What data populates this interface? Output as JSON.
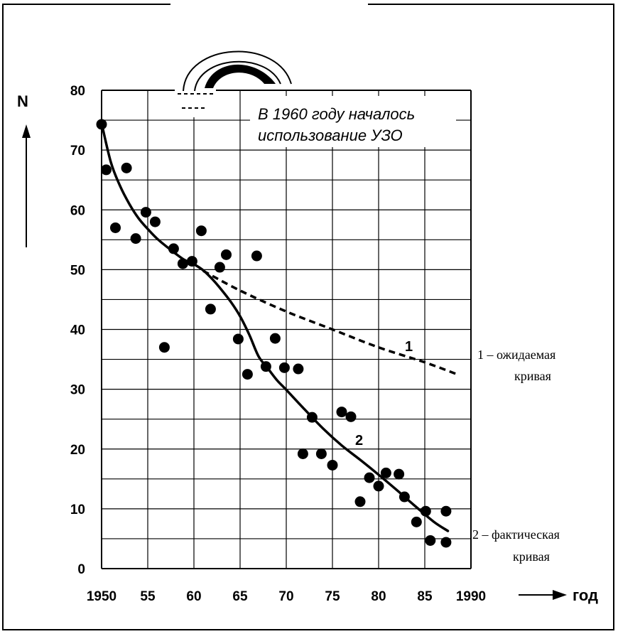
{
  "chart_data": {
    "type": "scatter",
    "xlabel": "год",
    "ylabel": "N",
    "xlim": [
      1950,
      1990
    ],
    "ylim": [
      0,
      80
    ],
    "grid": true,
    "x_tick_labels": [
      "1950",
      "55",
      "60",
      "65",
      "70",
      "75",
      "80",
      "85",
      "1990"
    ],
    "y_tick_labels": [
      "0",
      "10",
      "20",
      "30",
      "40",
      "50",
      "60",
      "70",
      "80"
    ],
    "annotation": [
      "В 1960 году началось",
      "использование УЗО"
    ],
    "legend_entries": [
      "1 – ожидаемая",
      "кривая",
      "2 – фактическая",
      "кривая"
    ],
    "curve_labels": [
      "1",
      "2"
    ],
    "points": [
      {
        "x": 1950.0,
        "y": 74.3
      },
      {
        "x": 1950.5,
        "y": 66.7
      },
      {
        "x": 1951.5,
        "y": 57.0
      },
      {
        "x": 1952.7,
        "y": 67.0
      },
      {
        "x": 1953.7,
        "y": 55.2
      },
      {
        "x": 1954.8,
        "y": 59.6
      },
      {
        "x": 1955.8,
        "y": 58.0
      },
      {
        "x": 1956.8,
        "y": 37.0
      },
      {
        "x": 1957.8,
        "y": 53.5
      },
      {
        "x": 1958.8,
        "y": 51.0
      },
      {
        "x": 1959.8,
        "y": 51.4
      },
      {
        "x": 1960.8,
        "y": 56.5
      },
      {
        "x": 1961.8,
        "y": 43.4
      },
      {
        "x": 1962.8,
        "y": 50.4
      },
      {
        "x": 1963.5,
        "y": 52.5
      },
      {
        "x": 1964.8,
        "y": 38.4
      },
      {
        "x": 1965.8,
        "y": 32.5
      },
      {
        "x": 1966.8,
        "y": 52.3
      },
      {
        "x": 1967.8,
        "y": 33.8
      },
      {
        "x": 1968.8,
        "y": 38.5
      },
      {
        "x": 1969.8,
        "y": 33.6
      },
      {
        "x": 1971.3,
        "y": 33.4
      },
      {
        "x": 1971.8,
        "y": 19.2
      },
      {
        "x": 1972.8,
        "y": 25.3
      },
      {
        "x": 1973.8,
        "y": 19.2
      },
      {
        "x": 1975.0,
        "y": 17.3
      },
      {
        "x": 1976.0,
        "y": 26.2
      },
      {
        "x": 1977.0,
        "y": 25.4
      },
      {
        "x": 1978.0,
        "y": 11.2
      },
      {
        "x": 1979.0,
        "y": 15.2
      },
      {
        "x": 1980.0,
        "y": 13.8
      },
      {
        "x": 1980.8,
        "y": 16.0
      },
      {
        "x": 1982.2,
        "y": 15.8
      },
      {
        "x": 1982.8,
        "y": 12.0
      },
      {
        "x": 1984.1,
        "y": 7.8
      },
      {
        "x": 1985.1,
        "y": 9.6
      },
      {
        "x": 1985.6,
        "y": 4.7
      },
      {
        "x": 1987.3,
        "y": 4.4
      },
      {
        "x": 1987.3,
        "y": 9.6
      }
    ],
    "series": [
      {
        "name": "1",
        "style": "dashed",
        "x": [
          1961,
          1965,
          1970,
          1975,
          1980,
          1985,
          1988.5
        ],
        "y": [
          49.8,
          46.5,
          43.0,
          40.0,
          37.0,
          34.5,
          32.5
        ]
      },
      {
        "name": "2",
        "style": "solid",
        "x": [
          1950,
          1951,
          1952,
          1953,
          1954,
          1955,
          1956,
          1957,
          1958,
          1959,
          1960,
          1961,
          1962,
          1963,
          1964,
          1965,
          1966,
          1967,
          1968,
          1969,
          1970,
          1972,
          1974,
          1976,
          1978,
          1980,
          1982,
          1984,
          1986,
          1987.5
        ],
        "y": [
          74.5,
          68.0,
          64.0,
          61.0,
          58.6,
          56.8,
          55.2,
          53.9,
          52.7,
          51.6,
          50.9,
          49.9,
          48.4,
          46.6,
          44.6,
          42.2,
          39.1,
          35.5,
          33.5,
          31.5,
          29.9,
          26.6,
          23.4,
          20.6,
          18.2,
          15.7,
          13.1,
          10.4,
          7.8,
          6.3
        ]
      }
    ]
  }
}
